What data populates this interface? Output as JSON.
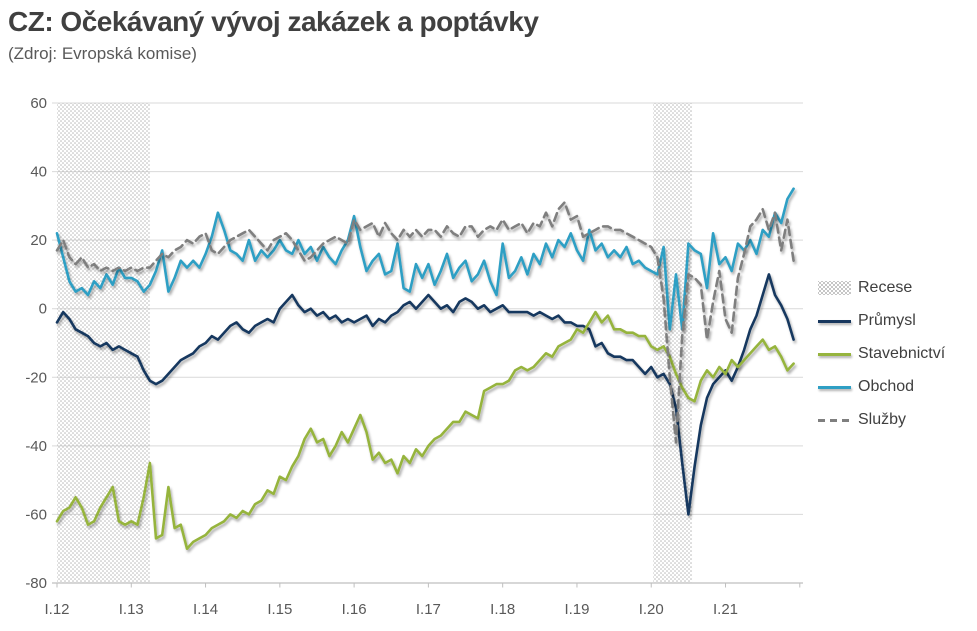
{
  "header": {
    "title": "CZ: Očekávaný vývoj zakázek a poptávky",
    "subtitle": "(Zdroj: Evropská komise)"
  },
  "chart_data": {
    "type": "line",
    "title": "CZ: Očekávaný vývoj zakázek a poptávky",
    "source": "(Zdroj: Evropská komise)",
    "x_unit": "month",
    "x_start": "2012-01",
    "x_end": "2021-12",
    "x_tick_labels": [
      "I.12",
      "I.13",
      "I.14",
      "I.15",
      "I.16",
      "I.17",
      "I.18",
      "I.19",
      "I.20",
      "I.21"
    ],
    "x_tick_month_indices": [
      0,
      12,
      24,
      36,
      48,
      60,
      72,
      84,
      96,
      108
    ],
    "y_ticks": [
      60,
      40,
      20,
      0,
      -20,
      -40,
      -60,
      -80
    ],
    "ylim": [
      -80,
      60
    ],
    "grid": "horizontal",
    "legend_position": "right",
    "colors": {
      "grid": "#d9d9d9",
      "axis": "#bfbfbf",
      "tick_text": "#595959",
      "band_dots": "#b3b3b3"
    },
    "bands": [
      {
        "label": "Recese",
        "from": "2012-01",
        "to": "2013-04",
        "from_idx": 0,
        "to_idx": 15
      },
      {
        "label": "Recese",
        "from": "2020-02",
        "to": "2020-08",
        "from_idx": 96.3,
        "to_idx": 102.6
      }
    ],
    "series": [
      {
        "name": "Průmysl",
        "color": "#17375E",
        "style": "solid",
        "values": [
          -4,
          -1,
          -3,
          -6,
          -7,
          -8,
          -10,
          -11,
          -10,
          -12,
          -11,
          -12,
          -13,
          -14,
          -18,
          -21,
          -22,
          -21,
          -19,
          -17,
          -15,
          -14,
          -13,
          -11,
          -10,
          -8,
          -9,
          -7,
          -5,
          -4,
          -6,
          -7,
          -5,
          -4,
          -3,
          -4,
          0,
          2,
          4,
          1,
          -1,
          0,
          -2,
          -1,
          -3,
          -2,
          -4,
          -3,
          -4,
          -3,
          -2,
          -5,
          -3,
          -4,
          -2,
          -1,
          1,
          2,
          0,
          2,
          4,
          2,
          0,
          1,
          -1,
          2,
          3,
          2,
          0,
          1,
          -1,
          0,
          1,
          -1,
          -1,
          -1,
          -1,
          -2,
          -1,
          -2,
          -3,
          -2,
          -4,
          -4,
          -5,
          -5,
          -6,
          -11,
          -10,
          -13,
          -14,
          -14,
          -15,
          -15,
          -17,
          -19,
          -17,
          -20,
          -19,
          -22,
          -29,
          -45,
          -60,
          -46,
          -34,
          -26,
          -22,
          -20,
          -18,
          -21,
          -17,
          -12,
          -6,
          -2,
          4,
          10,
          4,
          1,
          -3,
          -9
        ]
      },
      {
        "name": "Stavebnictví",
        "color": "#96B43E",
        "style": "solid",
        "values": [
          -62,
          -59,
          -58,
          -55,
          -58,
          -63,
          -62,
          -58,
          -55,
          -52,
          -62,
          -63,
          -62,
          -63,
          -55,
          -45,
          -67,
          -66,
          -52,
          -64,
          -63,
          -70,
          -68,
          -67,
          -66,
          -64,
          -63,
          -62,
          -60,
          -61,
          -59,
          -60,
          -57,
          -56,
          -53,
          -54,
          -49,
          -50,
          -46,
          -43,
          -38,
          -35,
          -39,
          -38,
          -43,
          -40,
          -36,
          -39,
          -35,
          -31,
          -36,
          -44,
          -42,
          -45,
          -44,
          -48,
          -43,
          -45,
          -41,
          -43,
          -40,
          -38,
          -37,
          -35,
          -33,
          -33,
          -30,
          -31,
          -32,
          -24,
          -23,
          -22,
          -22,
          -21,
          -18,
          -17,
          -18,
          -17,
          -15,
          -13,
          -14,
          -11,
          -10,
          -9,
          -6,
          -7,
          -4,
          -1,
          -4,
          -2,
          -6,
          -6,
          -7,
          -7,
          -8,
          -8,
          -11,
          -12,
          -11,
          -14,
          -19,
          -23,
          -26,
          -27,
          -21,
          -18,
          -20,
          -17,
          -19,
          -15,
          -17,
          -15,
          -13,
          -11,
          -9,
          -12,
          -11,
          -14,
          -18,
          -16
        ]
      },
      {
        "name": "Obchod",
        "color": "#2E9FC4",
        "style": "solid",
        "values": [
          22,
          15,
          8,
          5,
          6,
          4,
          8,
          6,
          10,
          7,
          12,
          9,
          9,
          8,
          5,
          7,
          11,
          17,
          5,
          9,
          14,
          12,
          14,
          12,
          16,
          21,
          28,
          23,
          17,
          16,
          14,
          20,
          14,
          17,
          15,
          17,
          20,
          17,
          16,
          20,
          16,
          18,
          14,
          18,
          15,
          13,
          17,
          20,
          27,
          18,
          11,
          14,
          16,
          10,
          11,
          19,
          6,
          5,
          13,
          9,
          13,
          7,
          11,
          16,
          9,
          12,
          14,
          8,
          10,
          14,
          8,
          4,
          19,
          9,
          11,
          15,
          10,
          16,
          13,
          19,
          15,
          20,
          18,
          22,
          17,
          14,
          23,
          17,
          19,
          15,
          17,
          15,
          18,
          13,
          14,
          12,
          11,
          10,
          18,
          -6,
          10,
          -6,
          19,
          17,
          16,
          6,
          22,
          13,
          15,
          11,
          19,
          17,
          20,
          16,
          23,
          21,
          28,
          25,
          32,
          35
        ]
      },
      {
        "name": "Služby",
        "color": "#7F7F7F",
        "style": "dashed",
        "values": [
          17,
          20,
          15,
          13,
          15,
          12,
          13,
          11,
          12,
          11,
          12,
          11,
          12,
          11,
          12,
          12,
          14,
          16,
          15,
          17,
          18,
          20,
          19,
          21,
          22,
          17,
          16,
          18,
          20,
          21,
          22,
          23,
          21,
          19,
          17,
          20,
          21,
          22,
          20,
          17,
          14,
          15,
          17,
          19,
          20,
          21,
          20,
          19,
          26,
          23,
          24,
          25,
          21,
          25,
          22,
          20,
          23,
          21,
          23,
          21,
          23,
          23,
          21,
          24,
          22,
          21,
          24,
          24,
          21,
          23,
          24,
          23,
          26,
          23,
          24,
          25,
          22,
          25,
          24,
          28,
          24,
          29,
          31,
          26,
          27,
          21,
          22,
          23,
          24,
          24,
          23,
          23,
          22,
          21,
          20,
          19,
          18,
          15,
          3,
          -20,
          -39,
          -8,
          10,
          9,
          7,
          -9,
          2,
          11,
          -3,
          -7,
          9,
          16,
          24,
          26,
          29,
          23,
          28,
          17,
          26,
          14
        ]
      }
    ]
  }
}
